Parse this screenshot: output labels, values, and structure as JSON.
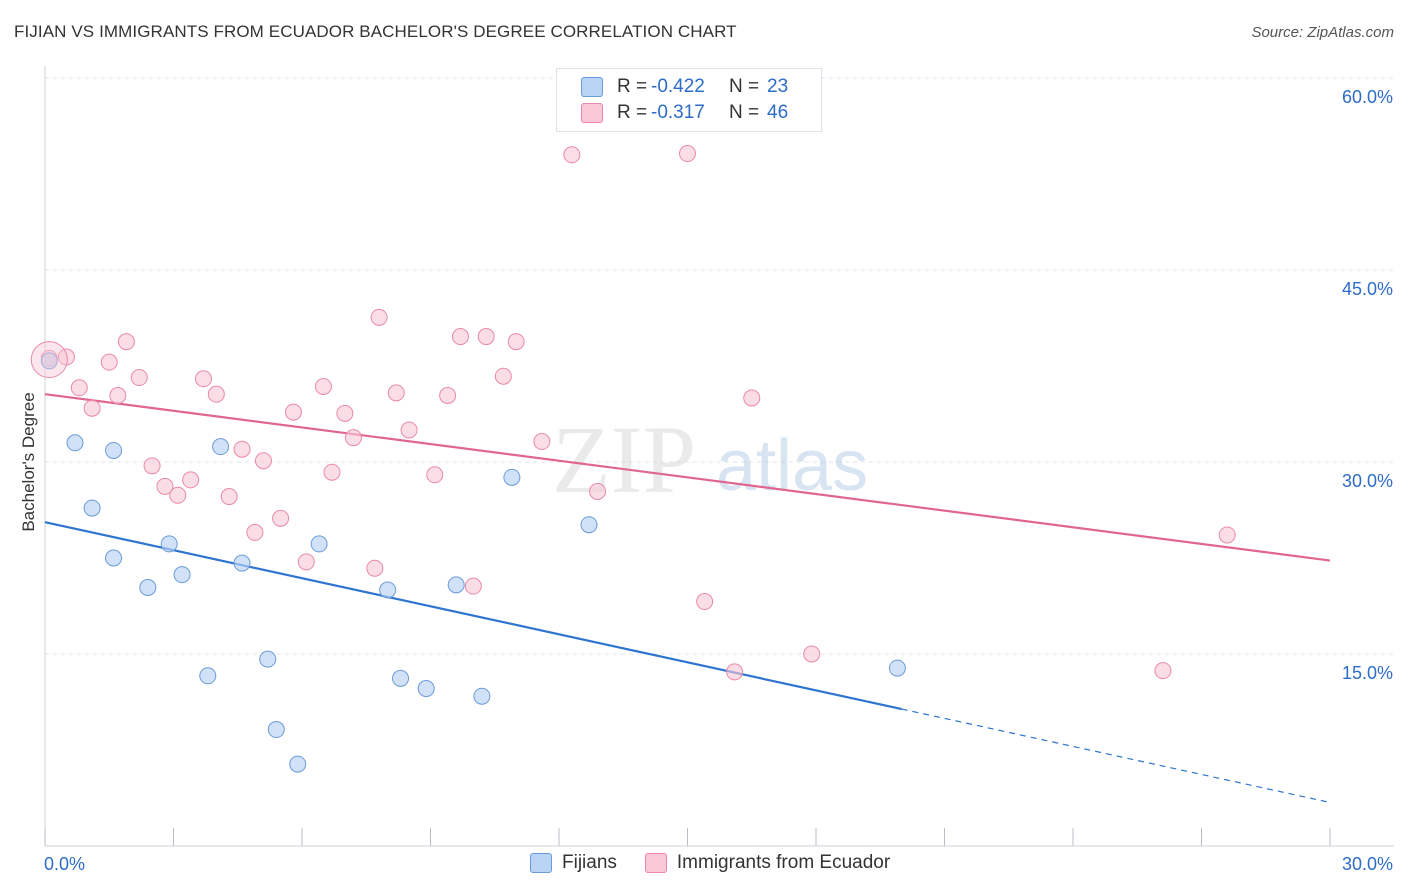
{
  "header": {
    "title": "FIJIAN VS IMMIGRANTS FROM ECUADOR BACHELOR'S DEGREE CORRELATION CHART",
    "source": "Source: ZipAtlas.com"
  },
  "legend": {
    "rows": [
      {
        "r_label": "R =",
        "r_value": "-0.422",
        "n_label": "N =",
        "n_value": "23"
      },
      {
        "r_label": "R =",
        "r_value": "-0.317",
        "n_label": "N =",
        "n_value": "46"
      }
    ],
    "bottom": [
      "Fijians",
      "Immigrants from Ecuador"
    ]
  },
  "colors": {
    "fijians_fill": "#b8d3f4",
    "fijians_stroke": "#6b9bd8",
    "fijians_line": "#2f74d0",
    "ecuador_fill": "#f9c7d6",
    "ecuador_stroke": "#e98aa8",
    "ecuador_line": "#e06690",
    "tick_label": "#2d6cc7",
    "grid": "#dfe3e8"
  },
  "chart_data": {
    "type": "scatter",
    "title": "FIJIAN VS IMMIGRANTS FROM ECUADOR BACHELOR'S DEGREE CORRELATION CHART",
    "xlabel": "",
    "ylabel": "Bachelor's Degree",
    "xlim": [
      0,
      30
    ],
    "ylim": [
      0,
      60
    ],
    "x_tick_labels": [
      "0.0%",
      "30.0%"
    ],
    "y_ticks": [
      15,
      30,
      45,
      60
    ],
    "y_tick_labels": [
      "15.0%",
      "30.0%",
      "45.0%",
      "60.0%"
    ],
    "grid": true,
    "legend_position": "top-center",
    "watermark": "ZIPatlas",
    "series": [
      {
        "name": "Fijians",
        "R": -0.422,
        "N": 23,
        "points": [
          [
            0.1,
            37.9
          ],
          [
            0.7,
            31.5
          ],
          [
            1.1,
            26.4
          ],
          [
            1.6,
            30.9
          ],
          [
            1.6,
            22.5
          ],
          [
            2.4,
            20.2
          ],
          [
            2.9,
            23.6
          ],
          [
            3.2,
            21.2
          ],
          [
            3.8,
            13.3
          ],
          [
            4.1,
            31.2
          ],
          [
            4.6,
            22.1
          ],
          [
            5.2,
            14.6
          ],
          [
            5.4,
            9.1
          ],
          [
            5.9,
            6.4
          ],
          [
            6.4,
            23.6
          ],
          [
            8.0,
            20.0
          ],
          [
            8.3,
            13.1
          ],
          [
            8.9,
            12.3
          ],
          [
            9.6,
            20.4
          ],
          [
            10.2,
            11.7
          ],
          [
            10.9,
            28.8
          ],
          [
            12.7,
            25.1
          ],
          [
            19.9,
            13.9
          ]
        ],
        "trend": {
          "x0": 0,
          "y0": 25.3,
          "x1": 20.0,
          "y1": 10.7,
          "dash_to_x": 30,
          "dash_to_y": 3.4
        }
      },
      {
        "name": "Immigrants from Ecuador",
        "R": -0.317,
        "N": 46,
        "points": [
          [
            0.1,
            38.1
          ],
          [
            0.5,
            38.2
          ],
          [
            0.8,
            35.8
          ],
          [
            1.1,
            34.2
          ],
          [
            1.5,
            37.8
          ],
          [
            1.7,
            35.2
          ],
          [
            1.9,
            39.4
          ],
          [
            2.2,
            36.6
          ],
          [
            2.5,
            29.7
          ],
          [
            2.8,
            28.1
          ],
          [
            3.1,
            27.4
          ],
          [
            3.4,
            28.6
          ],
          [
            3.7,
            36.5
          ],
          [
            4.0,
            35.3
          ],
          [
            4.3,
            27.3
          ],
          [
            4.6,
            31.0
          ],
          [
            4.9,
            24.5
          ],
          [
            5.1,
            30.1
          ],
          [
            5.5,
            25.6
          ],
          [
            5.8,
            33.9
          ],
          [
            6.1,
            22.2
          ],
          [
            6.5,
            35.9
          ],
          [
            6.7,
            29.2
          ],
          [
            7.0,
            33.8
          ],
          [
            7.2,
            31.9
          ],
          [
            7.7,
            21.7
          ],
          [
            7.8,
            41.3
          ],
          [
            8.2,
            35.4
          ],
          [
            8.5,
            32.5
          ],
          [
            9.1,
            29.0
          ],
          [
            9.4,
            35.2
          ],
          [
            9.7,
            39.8
          ],
          [
            10.0,
            20.3
          ],
          [
            10.3,
            39.8
          ],
          [
            10.7,
            36.7
          ],
          [
            11.0,
            39.4
          ],
          [
            11.6,
            31.6
          ],
          [
            12.3,
            54.0
          ],
          [
            12.9,
            27.7
          ],
          [
            15.0,
            54.1
          ],
          [
            15.4,
            19.1
          ],
          [
            16.1,
            13.6
          ],
          [
            16.5,
            35.0
          ],
          [
            17.9,
            15.0
          ],
          [
            26.1,
            13.7
          ],
          [
            27.6,
            24.3
          ]
        ],
        "trend": {
          "x0": 0,
          "y0": 35.3,
          "x1": 30,
          "y1": 22.3
        }
      }
    ]
  }
}
